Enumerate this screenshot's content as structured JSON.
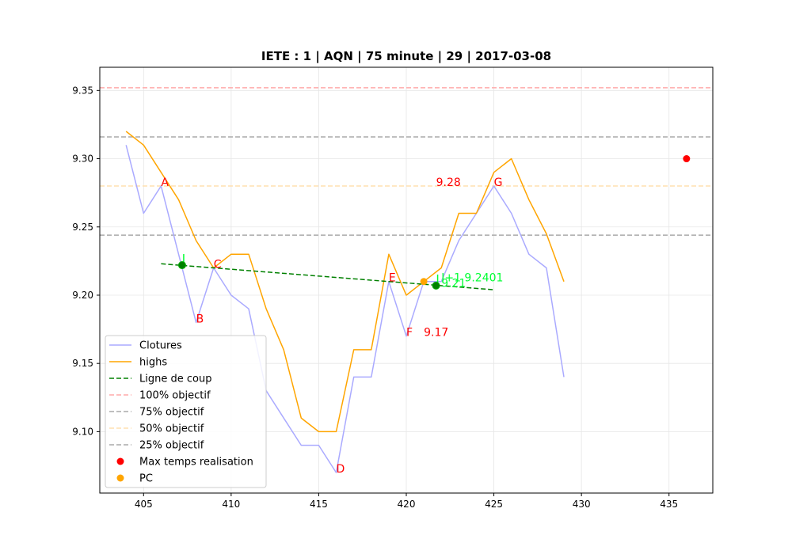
{
  "chart_data": {
    "type": "line",
    "title": "IETE : 1 | AQN | 75 minute | 29 | 2017-03-08",
    "xlabel": "",
    "ylabel": "",
    "xlim": [
      402.5,
      437.5
    ],
    "ylim": [
      9.055,
      9.367
    ],
    "x_ticks": [
      405,
      410,
      415,
      420,
      425,
      430,
      435
    ],
    "y_ticks": [
      9.1,
      9.15,
      9.2,
      9.25,
      9.3,
      9.35
    ],
    "x_tick_labels": [
      "405",
      "410",
      "415",
      "420",
      "425",
      "430",
      "435"
    ],
    "y_tick_labels": [
      "9.10",
      "9.15",
      "9.20",
      "9.25",
      "9.30",
      "9.35"
    ],
    "grid": true,
    "legend_position": "lower-left",
    "series": [
      {
        "name": "Clotures",
        "color": "#aaaaff",
        "style": "solid",
        "x": [
          404,
          405,
          406,
          407,
          408,
          409,
          410,
          411,
          412,
          413,
          414,
          415,
          416,
          417,
          418,
          419,
          420,
          421,
          422,
          423,
          424,
          425,
          426,
          427,
          428,
          429
        ],
        "y": [
          9.31,
          9.26,
          9.28,
          9.23,
          9.18,
          9.22,
          9.2,
          9.19,
          9.13,
          9.11,
          9.09,
          9.09,
          9.07,
          9.14,
          9.14,
          9.21,
          9.17,
          9.21,
          9.21,
          9.24,
          9.26,
          9.28,
          9.26,
          9.23,
          9.22,
          9.14
        ]
      },
      {
        "name": "highs",
        "color": "#ffa500",
        "style": "solid",
        "x": [
          404,
          405,
          406,
          407,
          408,
          409,
          410,
          411,
          412,
          413,
          414,
          415,
          416,
          417,
          418,
          419,
          420,
          421,
          422,
          423,
          424,
          425,
          426,
          427,
          428,
          429
        ],
        "y": [
          9.32,
          9.31,
          9.29,
          9.27,
          9.24,
          9.22,
          9.23,
          9.23,
          9.19,
          9.16,
          9.11,
          9.1,
          9.1,
          9.16,
          9.16,
          9.23,
          9.2,
          9.21,
          9.22,
          9.26,
          9.26,
          9.29,
          9.3,
          9.27,
          9.245,
          9.21
        ]
      },
      {
        "name": "Ligne de coup",
        "color": "#008000",
        "style": "dashed",
        "x": [
          406,
          425
        ],
        "y": [
          9.223,
          9.204
        ]
      }
    ],
    "hlines": [
      {
        "name": "100% objectif",
        "y": 9.352,
        "color": "#ffaaaa"
      },
      {
        "name": "75% objectif",
        "y": 9.316,
        "color": "#aaaaaa"
      },
      {
        "name": "50% objectif",
        "y": 9.28,
        "color": "#ffe0b0"
      },
      {
        "name": "25% objectif",
        "y": 9.244,
        "color": "#aaaaaa"
      }
    ],
    "points": [
      {
        "name": "Max temps realisation",
        "x": 436,
        "y": 9.3,
        "color": "#ff0000"
      },
      {
        "name": "PC",
        "x": 421,
        "y": 9.21,
        "color": "#ffa500"
      }
    ],
    "green_markers": [
      {
        "x": 407.2,
        "y": 9.222
      },
      {
        "x": 421.7,
        "y": 9.207
      }
    ],
    "annotations": [
      {
        "text": "A",
        "x": 406,
        "y": 9.28,
        "color": "#ff0000"
      },
      {
        "text": "B",
        "x": 408,
        "y": 9.18,
        "color": "#ff0000"
      },
      {
        "text": "C",
        "x": 409,
        "y": 9.22,
        "color": "#ff0000"
      },
      {
        "text": "D",
        "x": 416,
        "y": 9.07,
        "color": "#ff0000"
      },
      {
        "text": "E",
        "x": 419,
        "y": 9.21,
        "color": "#ff0000"
      },
      {
        "text": "F",
        "x": 420,
        "y": 9.17,
        "color": "#ff0000"
      },
      {
        "text": "G",
        "x": 425,
        "y": 9.28,
        "color": "#ff0000"
      },
      {
        "text": "9.28",
        "x": 421.7,
        "y": 9.28,
        "color": "#ff0000"
      },
      {
        "text": "9.17",
        "x": 421,
        "y": 9.17,
        "color": "#ff0000"
      },
      {
        "text": "9.21",
        "x": 422,
        "y": 9.206,
        "color": "#00ff33"
      },
      {
        "text": "I+1 9.2401",
        "x": 422,
        "y": 9.21,
        "color": "#00ff33"
      }
    ],
    "legend": [
      {
        "label": "Clotures",
        "kind": "line",
        "color": "#aaaaff",
        "dash": false
      },
      {
        "label": "highs",
        "kind": "line",
        "color": "#ffa500",
        "dash": false
      },
      {
        "label": "Ligne de coup",
        "kind": "line",
        "color": "#008000",
        "dash": true
      },
      {
        "label": "100% objectif",
        "kind": "line",
        "color": "#ffaaaa",
        "dash": true
      },
      {
        "label": "75% objectif",
        "kind": "line",
        "color": "#aaaaaa",
        "dash": true
      },
      {
        "label": "50% objectif",
        "kind": "line",
        "color": "#ffe0b0",
        "dash": true
      },
      {
        "label": "25% objectif",
        "kind": "line",
        "color": "#aaaaaa",
        "dash": true
      },
      {
        "label": "Max temps realisation",
        "kind": "dot",
        "color": "#ff0000",
        "dash": false
      },
      {
        "label": "PC",
        "kind": "dot",
        "color": "#ffa500",
        "dash": false
      }
    ]
  }
}
